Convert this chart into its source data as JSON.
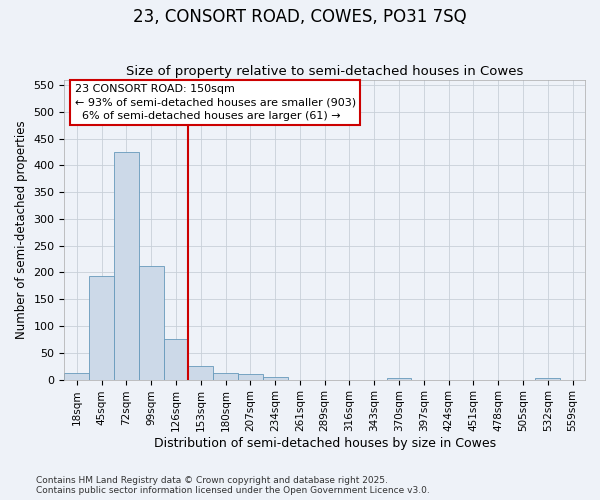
{
  "title": "23, CONSORT ROAD, COWES, PO31 7SQ",
  "subtitle": "Size of property relative to semi-detached houses in Cowes",
  "xlabel": "Distribution of semi-detached houses by size in Cowes",
  "ylabel": "Number of semi-detached properties",
  "footer_line1": "Contains HM Land Registry data © Crown copyright and database right 2025.",
  "footer_line2": "Contains public sector information licensed under the Open Government Licence v3.0.",
  "bins": [
    "18sqm",
    "45sqm",
    "72sqm",
    "99sqm",
    "126sqm",
    "153sqm",
    "180sqm",
    "207sqm",
    "234sqm",
    "261sqm",
    "289sqm",
    "316sqm",
    "343sqm",
    "370sqm",
    "397sqm",
    "424sqm",
    "451sqm",
    "478sqm",
    "505sqm",
    "532sqm",
    "559sqm"
  ],
  "values": [
    12,
    193,
    425,
    212,
    76,
    26,
    12,
    10,
    4,
    0,
    0,
    0,
    0,
    3,
    0,
    0,
    0,
    0,
    0,
    3,
    0
  ],
  "bar_color": "#ccd9e8",
  "bar_edge_color": "#6699bb",
  "grid_color": "#c8d0d8",
  "background_color": "#eef2f8",
  "vline_x_index": 5,
  "vline_color": "#cc0000",
  "annotation_line1": "23 CONSORT ROAD: 150sqm",
  "annotation_line2": "← 93% of semi-detached houses are smaller (903)",
  "annotation_line3": "  6% of semi-detached houses are larger (61) →",
  "annotation_box_color": "#ffffff",
  "annotation_box_edge_color": "#cc0000",
  "ylim": [
    0,
    560
  ],
  "yticks": [
    0,
    50,
    100,
    150,
    200,
    250,
    300,
    350,
    400,
    450,
    500,
    550
  ]
}
